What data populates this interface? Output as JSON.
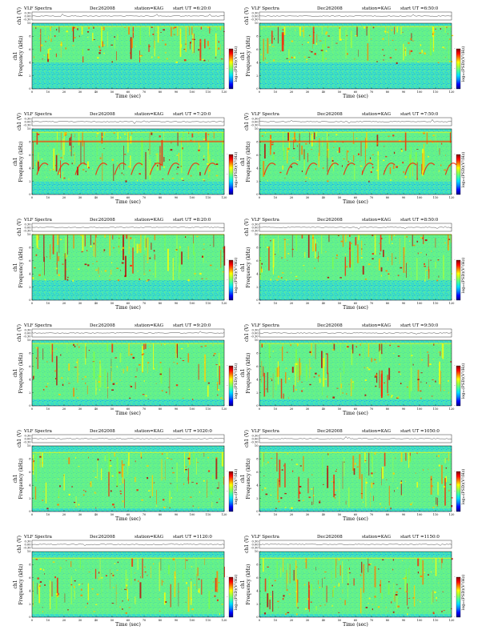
{
  "figure": {
    "panel_title": "VLF Spectra",
    "date": "Dec262008",
    "station": "station=KAG",
    "start_prefix": "start  UT  =",
    "ch_axis_label": "ch1 (V)",
    "ch_ticks": [
      "0.30",
      "0.00",
      "-0.30"
    ],
    "freq_axis_label": "Frequency  (kHz)",
    "freq_channel_label": "ch1",
    "freq_ticks": [
      "0",
      "2",
      "4",
      "6",
      "8",
      "10"
    ],
    "time_axis_label": "Time  (sec)",
    "time_ticks": [
      "0",
      "10",
      "20",
      "30",
      "40",
      "50",
      "60",
      "70",
      "80",
      "90",
      "100",
      "110",
      "120"
    ],
    "colorbar_label": "log₁₀(PSD)(V²/Hz)",
    "colorbar_ticks": [
      "-",
      "-",
      "-"
    ],
    "colorscale": [
      "#00007f",
      "#0000ff",
      "#0080ff",
      "#00e0ff",
      "#40ffa0",
      "#a0ff40",
      "#ffff00",
      "#ff8000",
      "#ff0000",
      "#7f0000"
    ],
    "background_color": "#40e0c0"
  },
  "chart_data": [
    {
      "type": "heatmap",
      "start_ut": "6:20:0",
      "x_range": [
        0,
        120
      ],
      "y_range": [
        0,
        10
      ],
      "noise_band_khz": [
        0,
        4
      ],
      "hiss_band_khz": [
        4,
        9.5
      ]
    },
    {
      "type": "heatmap",
      "start_ut": "6:50:0",
      "x_range": [
        0,
        120
      ],
      "y_range": [
        0,
        10
      ],
      "noise_band_khz": [
        0,
        4
      ],
      "hiss_band_khz": [
        4,
        9.5
      ]
    },
    {
      "type": "heatmap",
      "start_ut": "7:20:0",
      "x_range": [
        0,
        120
      ],
      "y_range": [
        0,
        10
      ],
      "hiss_band_khz": [
        2,
        9.5
      ],
      "chorus_khz": [
        3,
        4.5
      ]
    },
    {
      "type": "heatmap",
      "start_ut": "7:50:0",
      "x_range": [
        0,
        120
      ],
      "y_range": [
        0,
        10
      ],
      "hiss_band_khz": [
        2,
        9.5
      ],
      "chorus_khz": [
        3,
        4.5
      ]
    },
    {
      "type": "heatmap",
      "start_ut": "8:20:0",
      "x_range": [
        0,
        120
      ],
      "y_range": [
        0,
        10
      ],
      "hiss_band_khz": [
        3,
        10
      ]
    },
    {
      "type": "heatmap",
      "start_ut": "8:50:0",
      "x_range": [
        0,
        120
      ],
      "y_range": [
        0,
        10
      ],
      "hiss_band_khz": [
        3,
        10
      ]
    },
    {
      "type": "heatmap",
      "start_ut": "9:20:0",
      "x_range": [
        0,
        120
      ],
      "y_range": [
        0,
        10
      ],
      "hiss_band_khz": [
        1,
        9.5
      ]
    },
    {
      "type": "heatmap",
      "start_ut": "9:50:0",
      "x_range": [
        0,
        120
      ],
      "y_range": [
        0,
        10
      ],
      "hiss_band_khz": [
        1,
        9.5
      ]
    },
    {
      "type": "heatmap",
      "start_ut": "1020:0",
      "x_range": [
        0,
        120
      ],
      "y_range": [
        0,
        10
      ],
      "hiss_band_khz": [
        0.5,
        9
      ]
    },
    {
      "type": "heatmap",
      "start_ut": "1050:0",
      "x_range": [
        0,
        120
      ],
      "y_range": [
        0,
        10
      ],
      "hiss_band_khz": [
        0.5,
        9
      ]
    },
    {
      "type": "heatmap",
      "start_ut": "1120:0",
      "x_range": [
        0,
        120
      ],
      "y_range": [
        0,
        10
      ],
      "hiss_band_khz": [
        0.5,
        9
      ]
    },
    {
      "type": "heatmap",
      "start_ut": "1150:0",
      "x_range": [
        0,
        120
      ],
      "y_range": [
        0,
        10
      ],
      "hiss_band_khz": [
        0.5,
        9
      ]
    }
  ]
}
